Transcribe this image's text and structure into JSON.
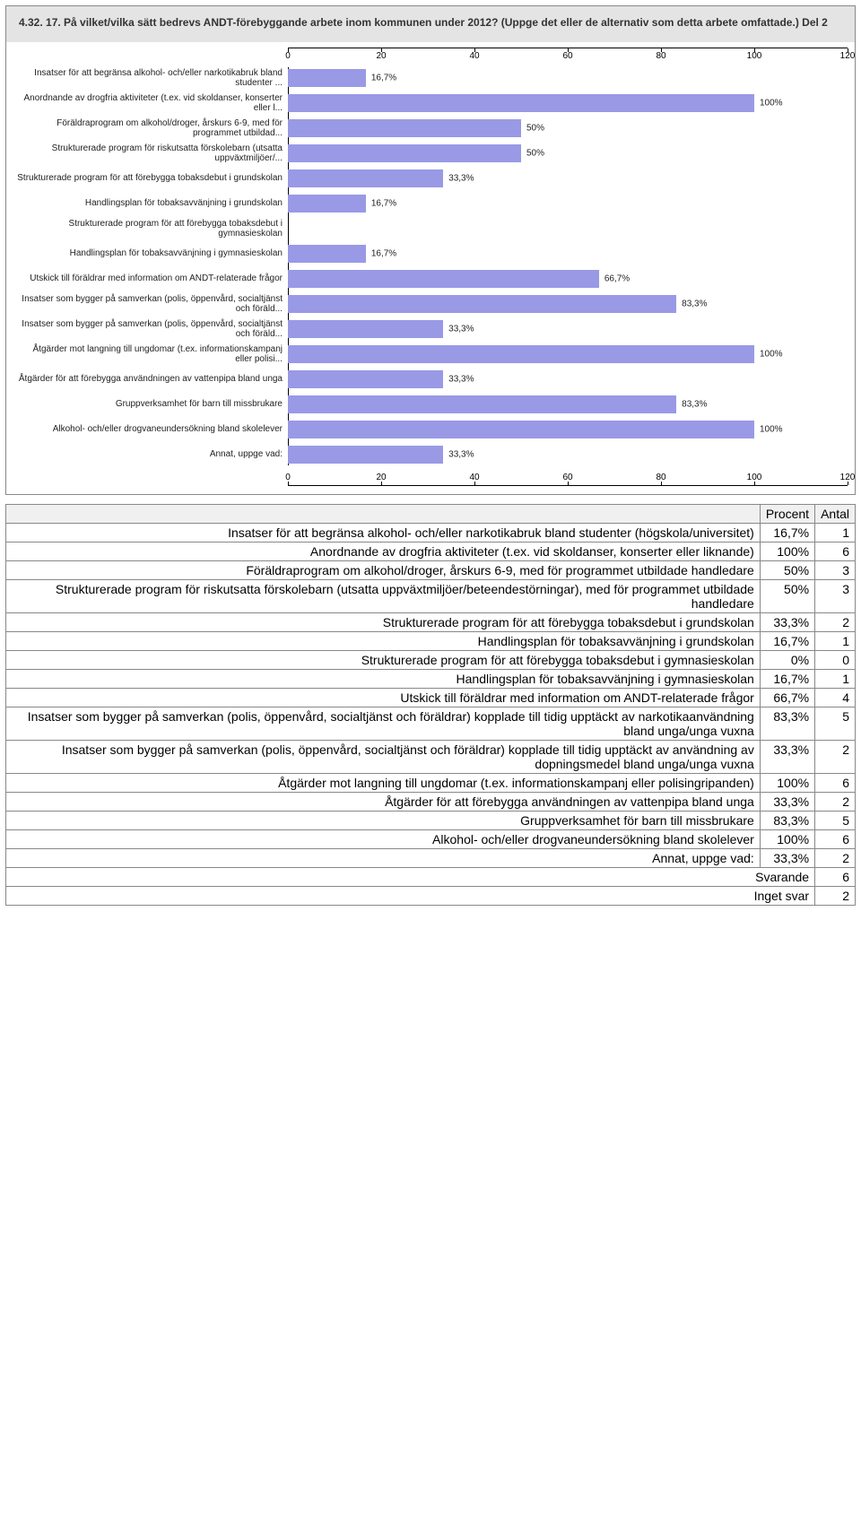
{
  "chart": {
    "type": "bar-horizontal",
    "title": "4.32. 17. På vilket/vilka sätt bedrevs ANDT-förebyggande arbete inom kommunen under 2012? (Uppge det eller de alternativ som detta arbete omfattade.) Del 2",
    "title_fontsize": 12,
    "background_frame": "#e4e4e4",
    "background_plot": "#ffffff",
    "bar_color": "#9999e6",
    "axis_color": "#000000",
    "label_fontsize": 10,
    "xlim": [
      0,
      120
    ],
    "xticks": [
      0,
      20,
      40,
      60,
      80,
      100,
      120
    ],
    "items": [
      {
        "label": "Insatser för att begränsa alkohol- och/eller narkotikabruk bland studenter ...",
        "value": 16.7,
        "value_label": "16,7%"
      },
      {
        "label": "Anordnande av drogfria aktiviteter (t.ex. vid skoldanser, konserter eller l...",
        "value": 100,
        "value_label": "100%"
      },
      {
        "label": "Föräldraprogram om alkohol/droger, årskurs 6-9, med för programmet utbildad...",
        "value": 50,
        "value_label": "50%"
      },
      {
        "label": "Strukturerade program för riskutsatta förskolebarn (utsatta uppväxtmiljöer/...",
        "value": 50,
        "value_label": "50%"
      },
      {
        "label": "Strukturerade program för att förebygga tobaksdebut i grundskolan",
        "value": 33.3,
        "value_label": "33,3%"
      },
      {
        "label": "Handlingsplan för tobaksavvänjning i grundskolan",
        "value": 16.7,
        "value_label": "16,7%"
      },
      {
        "label": "Strukturerade program för att förebygga tobaksdebut i gymnasieskolan",
        "value": 0,
        "value_label": ""
      },
      {
        "label": "Handlingsplan för tobaksavvänjning i gymnasieskolan",
        "value": 16.7,
        "value_label": "16,7%"
      },
      {
        "label": "Utskick till föräldrar med information om ANDT-relaterade frågor",
        "value": 66.7,
        "value_label": "66,7%"
      },
      {
        "label": "Insatser som bygger på samverkan (polis, öppenvård, socialtjänst och föräld...",
        "value": 83.3,
        "value_label": "83,3%"
      },
      {
        "label": "Insatser som bygger på samverkan (polis, öppenvård, socialtjänst och föräld...",
        "value": 33.3,
        "value_label": "33,3%"
      },
      {
        "label": "Åtgärder mot langning till ungdomar (t.ex. informationskampanj eller polisi...",
        "value": 100,
        "value_label": "100%"
      },
      {
        "label": "Åtgärder för att förebygga användningen av vattenpipa bland unga",
        "value": 33.3,
        "value_label": "33,3%"
      },
      {
        "label": "Gruppverksamhet för barn till missbrukare",
        "value": 83.3,
        "value_label": "83,3%"
      },
      {
        "label": "Alkohol- och/eller drogvaneundersökning bland skolelever",
        "value": 100,
        "value_label": "100%"
      },
      {
        "label": "Annat, uppge vad:",
        "value": 33.3,
        "value_label": "33,3%"
      }
    ]
  },
  "table": {
    "columns": [
      "",
      "Procent",
      "Antal"
    ],
    "rows": [
      {
        "label": "Insatser för att begränsa alkohol- och/eller narkotikabruk bland studenter (högskola/universitet)",
        "pct": "16,7%",
        "cnt": "1"
      },
      {
        "label": "Anordnande av drogfria aktiviteter (t.ex. vid skoldanser, konserter eller liknande)",
        "pct": "100%",
        "cnt": "6"
      },
      {
        "label": "Föräldraprogram om alkohol/droger, årskurs 6-9, med för programmet utbildade handledare",
        "pct": "50%",
        "cnt": "3"
      },
      {
        "label": "Strukturerade program för riskutsatta förskolebarn (utsatta uppväxtmiljöer/beteendestörningar), med för programmet utbildade handledare",
        "pct": "50%",
        "cnt": "3"
      },
      {
        "label": "Strukturerade program för att förebygga tobaksdebut i grundskolan",
        "pct": "33,3%",
        "cnt": "2"
      },
      {
        "label": "Handlingsplan för tobaksavvänjning i grundskolan",
        "pct": "16,7%",
        "cnt": "1"
      },
      {
        "label": "Strukturerade program för att förebygga tobaksdebut i gymnasieskolan",
        "pct": "0%",
        "cnt": "0"
      },
      {
        "label": "Handlingsplan för tobaksavvänjning i gymnasieskolan",
        "pct": "16,7%",
        "cnt": "1"
      },
      {
        "label": "Utskick till föräldrar med information om ANDT-relaterade frågor",
        "pct": "66,7%",
        "cnt": "4"
      },
      {
        "label": "Insatser som bygger på samverkan (polis, öppenvård, socialtjänst och föräldrar) kopplade till tidig upptäckt av narkotikaanvändning bland unga/unga vuxna",
        "pct": "83,3%",
        "cnt": "5"
      },
      {
        "label": "Insatser som bygger på samverkan (polis, öppenvård, socialtjänst och föräldrar) kopplade till tidig upptäckt av användning av dopningsmedel bland unga/unga vuxna",
        "pct": "33,3%",
        "cnt": "2"
      },
      {
        "label": "Åtgärder mot langning till ungdomar (t.ex. informationskampanj eller polisingripanden)",
        "pct": "100%",
        "cnt": "6"
      },
      {
        "label": "Åtgärder för att förebygga användningen av vattenpipa bland unga",
        "pct": "33,3%",
        "cnt": "2"
      },
      {
        "label": "Gruppverksamhet för barn till missbrukare",
        "pct": "83,3%",
        "cnt": "5"
      },
      {
        "label": "Alkohol- och/eller drogvaneundersökning bland skolelever",
        "pct": "100%",
        "cnt": "6"
      },
      {
        "label": "Annat, uppge vad:",
        "pct": "33,3%",
        "cnt": "2"
      }
    ],
    "footer": [
      {
        "label": "Svarande",
        "value": "6"
      },
      {
        "label": "Inget svar",
        "value": "2"
      }
    ]
  }
}
